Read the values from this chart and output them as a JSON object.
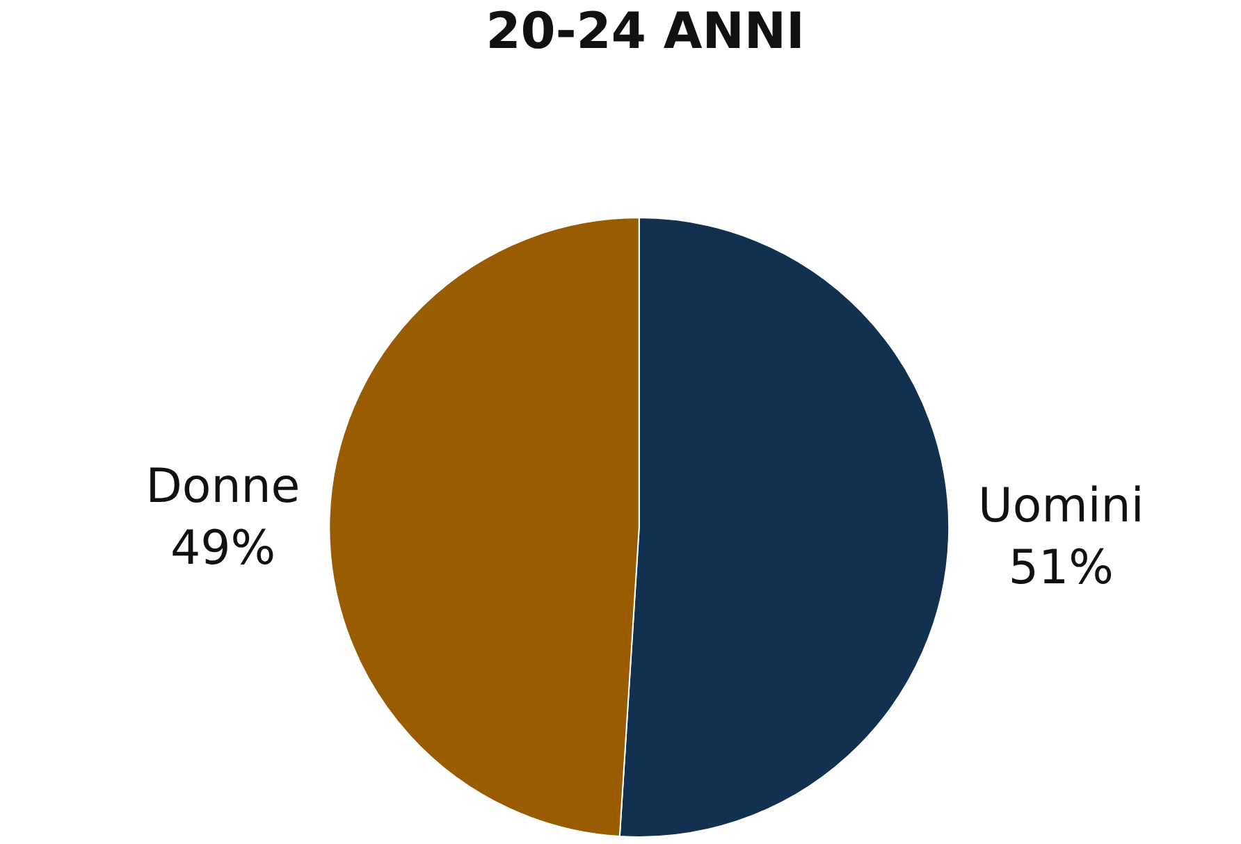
{
  "chart_data": {
    "type": "pie",
    "title": "20-24 ANNI",
    "categories": [
      "Uomini",
      "Donne"
    ],
    "values": [
      51,
      49
    ],
    "value_labels": [
      "51%",
      "49%"
    ],
    "colors": [
      "#12304f",
      "#9a5c00"
    ]
  }
}
